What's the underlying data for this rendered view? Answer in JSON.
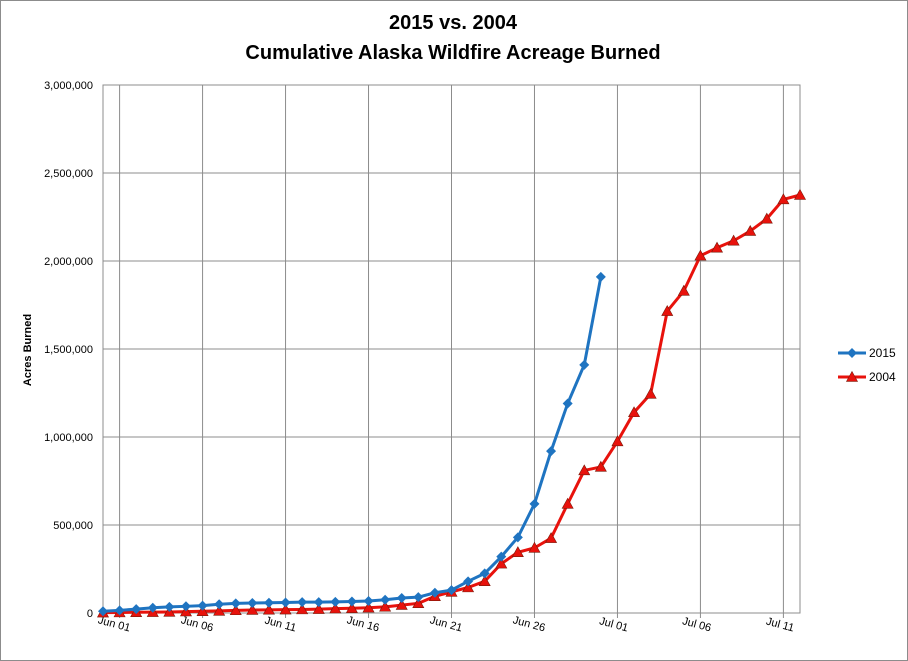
{
  "chart_data": {
    "type": "line",
    "title": "2015 vs. 2004",
    "subtitle": "Cumulative Alaska Wildfire Acreage Burned",
    "ylabel": "Acres Burned",
    "xlabel": "",
    "ylim": [
      0,
      3000000
    ],
    "yticks": [
      0,
      500000,
      1000000,
      1500000,
      2000000,
      2500000,
      3000000
    ],
    "ytick_labels": [
      "0",
      "500,000",
      "1,000,000",
      "1,500,000",
      "2,000,000",
      "2,500,000",
      "3,000,000"
    ],
    "xlim": [
      "2015-05-31",
      "2015-07-12"
    ],
    "xticks": [
      "2015-06-01",
      "2015-06-06",
      "2015-06-11",
      "2015-06-16",
      "2015-06-21",
      "2015-06-26",
      "2015-07-01",
      "2015-07-06",
      "2015-07-11"
    ],
    "xtick_labels": [
      "Jun 01",
      "Jun 06",
      "Jun 11",
      "Jun 16",
      "Jun 21",
      "Jun 26",
      "Jul 01",
      "Jul 06",
      "Jul 11"
    ],
    "grid": true,
    "legend_position": "right",
    "series": [
      {
        "name": "2015",
        "color": "#1f74c1",
        "marker": "diamond",
        "x": [
          "2015-05-31",
          "2015-06-01",
          "2015-06-02",
          "2015-06-03",
          "2015-06-04",
          "2015-06-05",
          "2015-06-06",
          "2015-06-07",
          "2015-06-08",
          "2015-06-09",
          "2015-06-10",
          "2015-06-11",
          "2015-06-12",
          "2015-06-13",
          "2015-06-14",
          "2015-06-15",
          "2015-06-16",
          "2015-06-17",
          "2015-06-18",
          "2015-06-19",
          "2015-06-20",
          "2015-06-21",
          "2015-06-22",
          "2015-06-23",
          "2015-06-24",
          "2015-06-25",
          "2015-06-26",
          "2015-06-27",
          "2015-06-28",
          "2015-06-29"
        ],
        "values": [
          10000,
          15000,
          22000,
          30000,
          35000,
          38000,
          42000,
          50000,
          55000,
          57000,
          58000,
          60000,
          62000,
          62000,
          63000,
          65000,
          68000,
          75000,
          85000,
          90000,
          115000,
          130000,
          180000,
          225000,
          320000,
          430000,
          620000,
          920000,
          1190000,
          1410000
        ]
      },
      {
        "name": "2004",
        "color": "#e8120c",
        "marker": "triangle",
        "x": [
          "2015-05-31",
          "2015-06-01",
          "2015-06-02",
          "2015-06-03",
          "2015-06-04",
          "2015-06-05",
          "2015-06-06",
          "2015-06-07",
          "2015-06-08",
          "2015-06-09",
          "2015-06-10",
          "2015-06-11",
          "2015-06-12",
          "2015-06-13",
          "2015-06-14",
          "2015-06-15",
          "2015-06-16",
          "2015-06-17",
          "2015-06-18",
          "2015-06-19",
          "2015-06-20",
          "2015-06-21",
          "2015-06-22",
          "2015-06-23",
          "2015-06-24",
          "2015-06-25",
          "2015-06-26",
          "2015-06-27",
          "2015-06-28",
          "2015-06-29",
          "2015-06-30",
          "2015-07-01",
          "2015-07-02",
          "2015-07-03",
          "2015-07-04",
          "2015-07-05",
          "2015-07-06",
          "2015-07-07",
          "2015-07-08",
          "2015-07-09",
          "2015-07-10",
          "2015-07-11",
          "2015-07-12"
        ],
        "values": [
          2000,
          3000,
          4000,
          5000,
          6000,
          8000,
          10000,
          12000,
          15000,
          17000,
          18000,
          19000,
          20000,
          22000,
          25000,
          27000,
          30000,
          35000,
          45000,
          55000,
          95000,
          120000,
          145000,
          180000,
          280000,
          345000,
          370000,
          425000,
          620000,
          810000,
          830000,
          975000,
          1140000,
          1245000,
          1715000,
          1830000,
          2030000,
          2075000,
          2115000,
          2170000,
          2240000,
          2350000,
          2375000
        ]
      }
    ]
  }
}
